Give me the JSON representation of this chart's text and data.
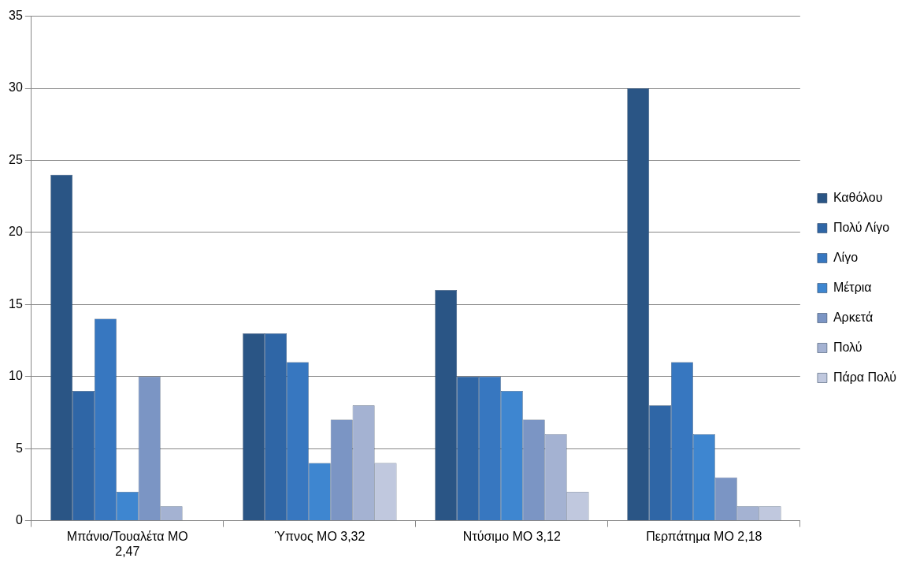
{
  "chart_data": {
    "type": "bar",
    "categories": [
      "Μπάνιο/Τουαλέτα ΜΟ 2,47",
      "Ύπνος ΜΟ 3,32",
      "Ντύσιμο ΜΟ 3,12",
      "Περπάτημα ΜΟ 2,18"
    ],
    "series": [
      {
        "name": "Καθόλου",
        "color": "#2a5585",
        "values": [
          24,
          13,
          16,
          30
        ]
      },
      {
        "name": "Πολύ Λίγο",
        "color": "#2f66a6",
        "values": [
          9,
          13,
          10,
          8
        ]
      },
      {
        "name": "Λίγο",
        "color": "#3777c0",
        "values": [
          14,
          11,
          10,
          11
        ]
      },
      {
        "name": "Μέτρια",
        "color": "#3e86d0",
        "values": [
          2,
          4,
          9,
          6
        ]
      },
      {
        "name": "Αρκετά",
        "color": "#7b95c4",
        "values": [
          10,
          7,
          7,
          3
        ]
      },
      {
        "name": "Πολύ",
        "color": "#a4b2d2",
        "values": [
          1,
          8,
          6,
          1
        ]
      },
      {
        "name": "Πάρα Πολύ",
        "color": "#c0c8de",
        "values": [
          0,
          4,
          2,
          1
        ]
      }
    ],
    "ylim": [
      0,
      35
    ],
    "yticks": [
      0,
      5,
      10,
      15,
      20,
      25,
      30,
      35
    ],
    "grid": "y",
    "legend": "right"
  }
}
